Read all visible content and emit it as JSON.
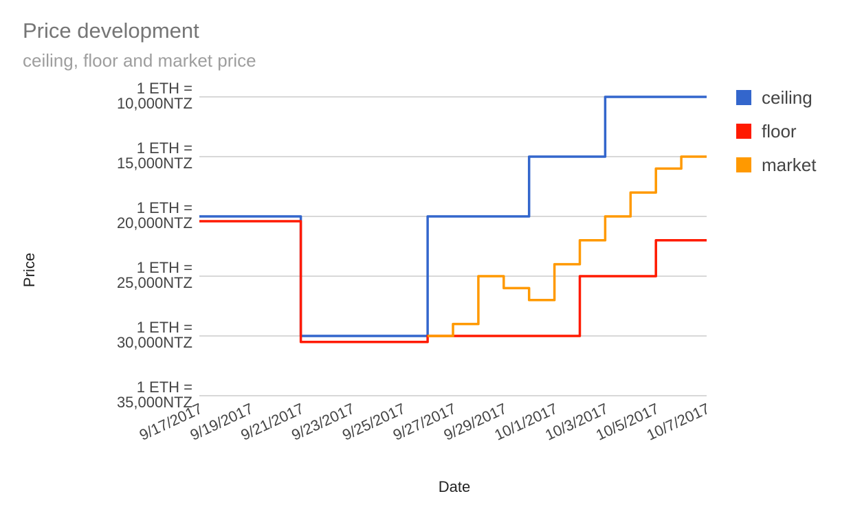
{
  "chart_data": {
    "type": "line",
    "title": "Price development",
    "subtitle": "ceiling, floor and market price",
    "xlabel": "Date",
    "ylabel": "Price",
    "x_ticks": [
      "9/17/2017",
      "9/19/2017",
      "9/21/2017",
      "9/23/2017",
      "9/25/2017",
      "9/27/2017",
      "9/29/2017",
      "10/1/2017",
      "10/3/2017",
      "10/5/2017",
      "10/7/2017"
    ],
    "y_ticks": [
      {
        "line1": "1 ETH =",
        "line2": "10,000NTZ",
        "value": 10000
      },
      {
        "line1": "1 ETH =",
        "line2": "15,000NTZ",
        "value": 15000
      },
      {
        "line1": "1 ETH =",
        "line2": "20,000NTZ",
        "value": 20000
      },
      {
        "line1": "1 ETH =",
        "line2": "25,000NTZ",
        "value": 25000
      },
      {
        "line1": "1 ETH =",
        "line2": "30,000NTZ",
        "value": 30000
      },
      {
        "line1": "1 ETH =",
        "line2": "35,000NTZ",
        "value": 35000
      }
    ],
    "xlim": [
      "9/17/2017",
      "10/7/2017"
    ],
    "ylim": [
      10000,
      35000
    ],
    "y_direction": "down",
    "grid": true,
    "legend_position": "right",
    "step_interpolation": "after",
    "series": [
      {
        "name": "ceiling",
        "color": "#3366cc",
        "points": [
          [
            "9/17/2017",
            20000
          ],
          [
            "9/18/2017",
            20000
          ],
          [
            "9/19/2017",
            20000
          ],
          [
            "9/20/2017",
            20000
          ],
          [
            "9/21/2017",
            30000
          ],
          [
            "9/22/2017",
            30000
          ],
          [
            "9/23/2017",
            30000
          ],
          [
            "9/24/2017",
            30000
          ],
          [
            "9/25/2017",
            30000
          ],
          [
            "9/26/2017",
            20000
          ],
          [
            "9/27/2017",
            20000
          ],
          [
            "9/28/2017",
            20000
          ],
          [
            "9/29/2017",
            20000
          ],
          [
            "9/30/2017",
            15000
          ],
          [
            "10/1/2017",
            15000
          ],
          [
            "10/2/2017",
            15000
          ],
          [
            "10/3/2017",
            10000
          ],
          [
            "10/4/2017",
            10000
          ],
          [
            "10/5/2017",
            10000
          ],
          [
            "10/6/2017",
            10000
          ],
          [
            "10/7/2017",
            10000
          ]
        ]
      },
      {
        "name": "floor",
        "color": "#ff1a00",
        "points": [
          [
            "9/17/2017",
            20400
          ],
          [
            "9/18/2017",
            20400
          ],
          [
            "9/19/2017",
            20400
          ],
          [
            "9/20/2017",
            20400
          ],
          [
            "9/21/2017",
            30500
          ],
          [
            "9/22/2017",
            30500
          ],
          [
            "9/23/2017",
            30500
          ],
          [
            "9/24/2017",
            30500
          ],
          [
            "9/25/2017",
            30500
          ],
          [
            "9/26/2017",
            30000
          ],
          [
            "9/27/2017",
            30000
          ],
          [
            "9/28/2017",
            30000
          ],
          [
            "9/29/2017",
            30000
          ],
          [
            "9/30/2017",
            30000
          ],
          [
            "10/1/2017",
            30000
          ],
          [
            "10/2/2017",
            25000
          ],
          [
            "10/3/2017",
            25000
          ],
          [
            "10/4/2017",
            25000
          ],
          [
            "10/5/2017",
            22000
          ],
          [
            "10/6/2017",
            22000
          ],
          [
            "10/7/2017",
            22000
          ]
        ]
      },
      {
        "name": "market",
        "color": "#ff9900",
        "points": [
          [
            "9/26/2017",
            30000
          ],
          [
            "9/27/2017",
            29000
          ],
          [
            "9/28/2017",
            25000
          ],
          [
            "9/29/2017",
            26000
          ],
          [
            "9/30/2017",
            27000
          ],
          [
            "10/1/2017",
            24000
          ],
          [
            "10/2/2017",
            22000
          ],
          [
            "10/3/2017",
            20000
          ],
          [
            "10/4/2017",
            18000
          ],
          [
            "10/5/2017",
            16000
          ],
          [
            "10/6/2017",
            15000
          ],
          [
            "10/7/2017",
            15000
          ]
        ]
      }
    ]
  }
}
